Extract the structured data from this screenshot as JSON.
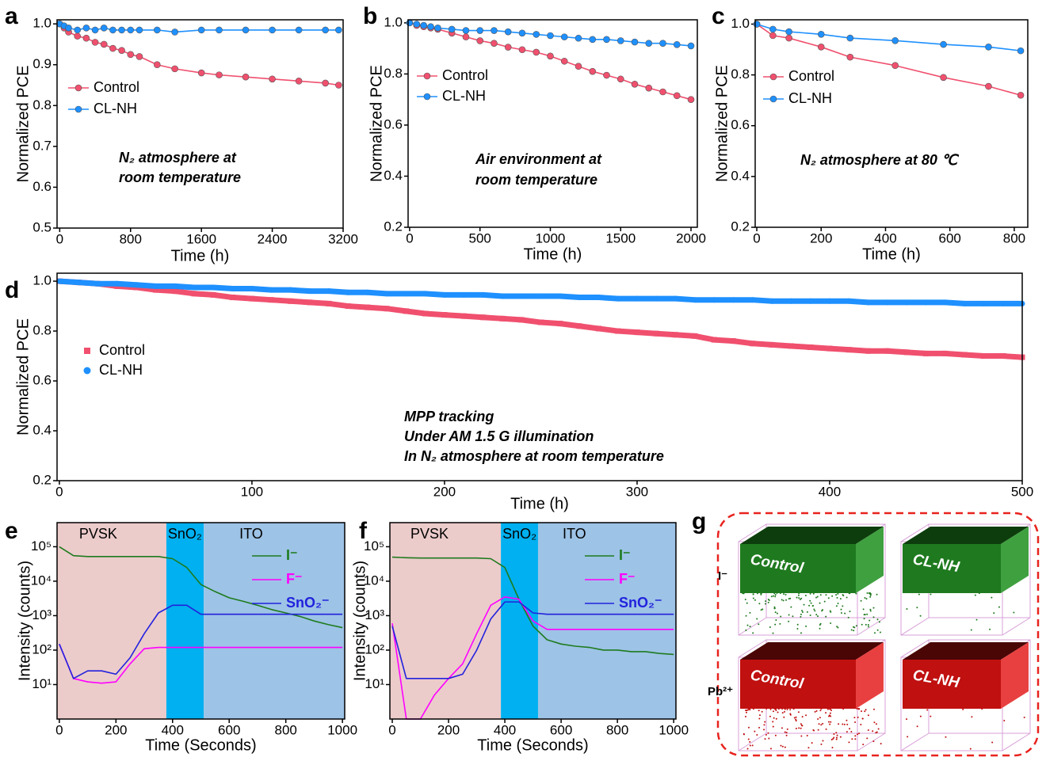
{
  "chart_data": [
    {
      "type": "line",
      "label": "a",
      "xlabel": "Time (h)",
      "ylabel": "Normalized PCE",
      "x": [
        0,
        50,
        100,
        200,
        300,
        400,
        500,
        600,
        700,
        800,
        900,
        1100,
        1300,
        1600,
        1800,
        2100,
        2400,
        2700,
        3000,
        3150
      ],
      "xlim": [
        -30,
        3200
      ],
      "xticks": [
        0,
        800,
        1600,
        2400,
        3200
      ],
      "ylim": [
        0.5,
        1.01
      ],
      "yticks": [
        0.5,
        0.6,
        0.7,
        0.8,
        0.9,
        {
          "value": 1,
          "label": "1.0"
        }
      ],
      "series": [
        {
          "name": "Control",
          "color": "#f0506e",
          "marker": "circle",
          "values": [
            1.0,
            0.99,
            0.98,
            0.97,
            0.965,
            0.955,
            0.95,
            0.94,
            0.935,
            0.925,
            0.92,
            0.9,
            0.89,
            0.88,
            0.875,
            0.87,
            0.865,
            0.86,
            0.855,
            0.85
          ]
        },
        {
          "name": "CL-NH",
          "color": "#1e90ff",
          "marker": "circle",
          "values": [
            1.0,
            0.995,
            0.99,
            0.985,
            0.99,
            0.985,
            0.99,
            0.985,
            0.985,
            0.985,
            0.985,
            0.985,
            0.98,
            0.985,
            0.985,
            0.985,
            0.985,
            0.985,
            0.985,
            0.985
          ]
        }
      ],
      "legend": "left",
      "annotation": [
        "N₂ atmosphere at",
        "room temperature"
      ]
    },
    {
      "type": "line",
      "label": "b",
      "xlabel": "Time (h)",
      "ylabel": "Normalized PCE",
      "x": [
        0,
        50,
        100,
        150,
        200,
        300,
        400,
        500,
        600,
        700,
        800,
        900,
        1000,
        1100,
        1200,
        1300,
        1400,
        1500,
        1600,
        1700,
        1800,
        1900,
        2000
      ],
      "xlim": [
        -11,
        2045
      ],
      "xticks": [
        0,
        500,
        1000,
        1500,
        2000
      ],
      "ylim": [
        0.2,
        1.012
      ],
      "yticks": [
        0.2,
        0.4,
        0.6,
        0.8,
        {
          "value": 1,
          "label": "1.0"
        }
      ],
      "series": [
        {
          "name": "Control",
          "color": "#f0506e",
          "marker": "circle",
          "values": [
            1.0,
            0.99,
            0.985,
            0.98,
            0.975,
            0.96,
            0.945,
            0.93,
            0.92,
            0.905,
            0.895,
            0.885,
            0.87,
            0.85,
            0.83,
            0.81,
            0.795,
            0.78,
            0.76,
            0.745,
            0.73,
            0.715,
            0.7
          ]
        },
        {
          "name": "CL-NH",
          "color": "#1e90ff",
          "marker": "circle",
          "values": [
            1.0,
            0.995,
            0.99,
            0.985,
            0.98,
            0.975,
            0.97,
            0.97,
            0.97,
            0.965,
            0.96,
            0.955,
            0.95,
            0.945,
            0.94,
            0.935,
            0.935,
            0.93,
            0.925,
            0.92,
            0.92,
            0.915,
            0.91
          ]
        }
      ],
      "legend": "left",
      "annotation": [
        "Air environment at",
        "room temperature"
      ]
    },
    {
      "type": "line",
      "label": "c",
      "xlabel": "Time (h)",
      "ylabel": "Normalized PCE",
      "x": [
        0,
        50,
        100,
        200,
        290,
        430,
        580,
        720,
        820
      ],
      "xlim": [
        -5,
        842
      ],
      "xticks": [
        0,
        200,
        400,
        600,
        800
      ],
      "ylim": [
        0.2,
        1.017
      ],
      "yticks": [
        0.2,
        0.4,
        0.6,
        0.8,
        {
          "value": 1,
          "label": "1.0"
        }
      ],
      "series": [
        {
          "name": "Control",
          "color": "#f0506e",
          "marker": "circle",
          "values": [
            1.0,
            0.955,
            0.945,
            0.91,
            0.87,
            0.837,
            0.79,
            0.755,
            0.72
          ]
        },
        {
          "name": "CL-NH",
          "color": "#1e90ff",
          "marker": "circle",
          "values": [
            1.0,
            0.98,
            0.97,
            0.96,
            0.945,
            0.935,
            0.92,
            0.91,
            0.895
          ]
        }
      ],
      "legend": "left",
      "annotation": [
        "N₂ atmosphere at 80 ℃"
      ]
    },
    {
      "type": "scatter",
      "label": "d",
      "xlabel": "Time (h)",
      "ylabel": "Normalized PCE",
      "x": [
        0,
        10,
        20,
        30,
        40,
        50,
        60,
        70,
        80,
        90,
        100,
        110,
        120,
        130,
        140,
        150,
        160,
        170,
        180,
        190,
        200,
        210,
        220,
        230,
        240,
        250,
        260,
        270,
        280,
        290,
        300,
        310,
        320,
        330,
        340,
        350,
        360,
        370,
        380,
        390,
        400,
        410,
        420,
        430,
        440,
        450,
        460,
        470,
        480,
        490,
        500
      ],
      "xlim": [
        -1.2,
        500
      ],
      "xticks": [
        0,
        100,
        200,
        300,
        400,
        500
      ],
      "ylim": [
        0.2,
        1.032
      ],
      "yticks": [
        0.2,
        0.4,
        0.6,
        0.8,
        {
          "value": 1,
          "label": "1.0"
        }
      ],
      "series": [
        {
          "name": "Control",
          "color": "#f0506e",
          "marker": "square",
          "values": [
            1.0,
            0.995,
            0.99,
            0.98,
            0.975,
            0.965,
            0.96,
            0.95,
            0.945,
            0.935,
            0.93,
            0.925,
            0.92,
            0.915,
            0.91,
            0.9,
            0.895,
            0.89,
            0.88,
            0.87,
            0.865,
            0.86,
            0.855,
            0.85,
            0.845,
            0.835,
            0.83,
            0.82,
            0.81,
            0.8,
            0.795,
            0.79,
            0.785,
            0.78,
            0.765,
            0.76,
            0.75,
            0.745,
            0.74,
            0.735,
            0.73,
            0.725,
            0.72,
            0.72,
            0.715,
            0.71,
            0.71,
            0.705,
            0.7,
            0.7,
            0.695
          ]
        },
        {
          "name": "CL-NH",
          "color": "#1e90ff",
          "marker": "circle",
          "values": [
            1.0,
            0.995,
            0.99,
            0.99,
            0.985,
            0.98,
            0.98,
            0.975,
            0.975,
            0.97,
            0.97,
            0.965,
            0.965,
            0.96,
            0.96,
            0.955,
            0.955,
            0.95,
            0.95,
            0.95,
            0.945,
            0.945,
            0.945,
            0.94,
            0.94,
            0.94,
            0.94,
            0.935,
            0.935,
            0.93,
            0.93,
            0.93,
            0.93,
            0.925,
            0.925,
            0.925,
            0.925,
            0.92,
            0.92,
            0.92,
            0.92,
            0.92,
            0.915,
            0.915,
            0.915,
            0.915,
            0.915,
            0.91,
            0.91,
            0.91,
            0.91
          ]
        }
      ],
      "legend": "left",
      "annotation": [
        "MPP tracking",
        "Under AM 1.5 G illumination",
        "In N₂ atmosphere at room temperature"
      ]
    },
    {
      "type": "line",
      "label": "e",
      "xlabel": "Time (Seconds)",
      "ylabel": "Intensity (counts)",
      "log_y": true,
      "x": [
        0,
        50,
        100,
        150,
        200,
        250,
        300,
        350,
        400,
        450,
        500,
        550,
        600,
        650,
        700,
        750,
        800,
        850,
        900,
        950,
        1000
      ],
      "xlim": [
        -8,
        1008
      ],
      "xticks": [
        0,
        200,
        400,
        600,
        800,
        1000
      ],
      "ylim": [
        1,
        500000
      ],
      "yticks": [
        {
          "value": 10,
          "label": "10¹"
        },
        {
          "value": 100,
          "label": "10²"
        },
        {
          "value": 1000,
          "label": "10³"
        },
        {
          "value": 10000,
          "label": "10⁴"
        },
        {
          "value": 100000,
          "label": "10⁵"
        }
      ],
      "regions": [
        {
          "label": "PVSK",
          "start": 0,
          "color": "#eccbcb"
        },
        {
          "label": "SnO₂",
          "start": 378,
          "color": "#00b0f0"
        },
        {
          "label": "ITO",
          "start": 510,
          "color": "#9dc3e6"
        }
      ],
      "series": [
        {
          "name": "I⁻",
          "color": "#1e7b1e",
          "values": [
            100000,
            55000,
            52000,
            52000,
            52000,
            52000,
            52000,
            52000,
            45000,
            25000,
            8000,
            5000,
            3300,
            2600,
            2000,
            1500,
            1200,
            950,
            700,
            550,
            450
          ]
        },
        {
          "name": "F⁻",
          "color": "#ff00ff",
          "values": [
            150,
            15,
            12,
            11,
            12,
            40,
            110,
            120,
            120,
            120,
            120,
            120,
            120,
            120,
            120,
            120,
            120,
            120,
            120,
            120,
            120
          ]
        },
        {
          "name": "SnO₂⁻",
          "color": "#2222dd",
          "values": [
            150,
            15,
            25,
            25,
            20,
            60,
            300,
            1200,
            2000,
            2000,
            1100,
            1100,
            1100,
            1100,
            1100,
            1100,
            1100,
            1100,
            1100,
            1100,
            1100
          ]
        }
      ],
      "legend": "right"
    },
    {
      "type": "line",
      "label": "f",
      "xlabel": "Time (Seconds)",
      "ylabel": "Intensity (counts)",
      "log_y": true,
      "x": [
        0,
        50,
        100,
        150,
        200,
        250,
        300,
        350,
        400,
        450,
        500,
        550,
        600,
        650,
        700,
        750,
        800,
        850,
        900,
        950,
        1000
      ],
      "xlim": [
        -8.5,
        1008
      ],
      "xticks": [
        0,
        200,
        400,
        600,
        800,
        1000
      ],
      "ylim": [
        1,
        500000
      ],
      "yticks": [
        {
          "value": 10,
          "label": "10¹"
        },
        {
          "value": 100,
          "label": "10²"
        },
        {
          "value": 1000,
          "label": "10³"
        },
        {
          "value": 10000,
          "label": "10⁴"
        },
        {
          "value": 100000,
          "label": "10⁵"
        }
      ],
      "regions": [
        {
          "label": "PVSK",
          "start": 0,
          "color": "#eccbcb"
        },
        {
          "label": "SnO₂",
          "start": 386,
          "color": "#00b0f0"
        },
        {
          "label": "ITO",
          "start": 518,
          "color": "#9dc3e6"
        }
      ],
      "series": [
        {
          "name": "I⁻",
          "color": "#1e7b1e",
          "values": [
            50000,
            48000,
            47000,
            47000,
            47000,
            47000,
            47000,
            45000,
            25000,
            3000,
            500,
            200,
            150,
            130,
            120,
            100,
            100,
            90,
            90,
            80,
            75
          ]
        },
        {
          "name": "F⁻",
          "color": "#ff00ff",
          "values": [
            600,
            1,
            1,
            5,
            15,
            40,
            300,
            2000,
            3500,
            3000,
            700,
            400,
            400,
            400,
            400,
            400,
            400,
            400,
            400,
            400,
            400
          ]
        },
        {
          "name": "SnO₂⁻",
          "color": "#2222dd",
          "values": [
            500,
            15,
            15,
            15,
            15,
            20,
            100,
            800,
            2500,
            2500,
            1200,
            1100,
            1100,
            1100,
            1100,
            1100,
            1100,
            1100,
            1100,
            1100,
            1100
          ]
        }
      ],
      "legend": "right"
    }
  ],
  "panel_g": {
    "label": "g",
    "rows": [
      "I⁻",
      "Pb²⁺"
    ],
    "samples": [
      "Control",
      "CL-NH"
    ]
  }
}
